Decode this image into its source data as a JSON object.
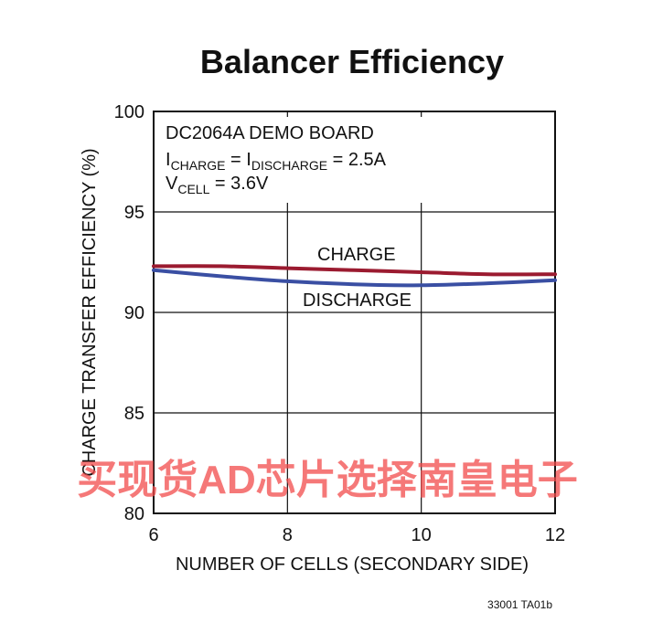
{
  "chart_data": {
    "type": "line",
    "title": "Balancer Efficiency",
    "xlabel": "NUMBER OF CELLS (SECONDARY SIDE)",
    "ylabel": "CHARGE TRANSFER EFFICIENCY (%)",
    "xlim": [
      6,
      12
    ],
    "ylim": [
      80,
      100
    ],
    "xticks": [
      6,
      8,
      10,
      12
    ],
    "yticks": [
      80,
      85,
      90,
      95,
      100
    ],
    "grid": true,
    "annotations": {
      "board": "DC2064A DEMO BOARD",
      "current_I1": "I",
      "current_sub1": "CHARGE",
      "current_eq": " = I",
      "current_sub2": "DISCHARGE",
      "current_val": " = 2.5A",
      "voltage_V": "V",
      "voltage_sub": "CELL",
      "voltage_val": " = 3.6V"
    },
    "series": [
      {
        "name": "CHARGE",
        "color": "#9b1b30",
        "x": [
          6,
          7,
          8,
          9,
          10,
          11,
          12
        ],
        "y": [
          92.3,
          92.3,
          92.2,
          92.1,
          92.0,
          91.9,
          91.9
        ]
      },
      {
        "name": "DISCHARGE",
        "color": "#3a4fa3",
        "x": [
          6,
          7,
          8,
          9,
          10,
          11,
          12
        ],
        "y": [
          92.1,
          91.8,
          91.55,
          91.4,
          91.35,
          91.45,
          91.6
        ]
      }
    ]
  },
  "figure_id": "33001 TA01b",
  "watermark": "买现货AD芯片选择南皇电子"
}
